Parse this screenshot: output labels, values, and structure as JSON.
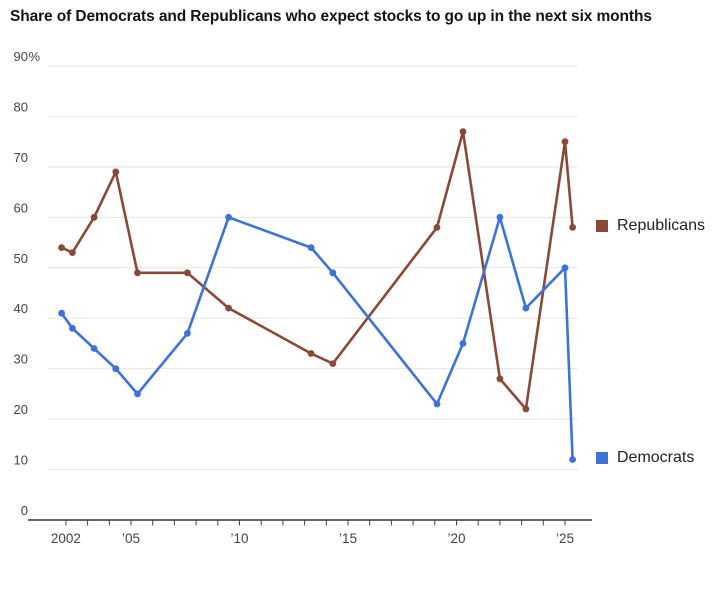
{
  "title": "Share of Democrats and Republicans who expect stocks to go up in the next six months",
  "legend": {
    "republicans": "Republicans",
    "democrats": "Democrats"
  },
  "colors": {
    "republicans": "#8a4936",
    "democrats": "#3c72da",
    "grid": "#e5e5e5",
    "axis": "#333333",
    "tick_label": "#444444",
    "title": "#141414"
  },
  "chart_data": {
    "type": "line",
    "x": [
      2001.8,
      2002.3,
      2003.3,
      2004.3,
      2005.3,
      2007.6,
      2009.5,
      2013.3,
      2014.3,
      2019.1,
      2020.3,
      2022.0,
      2023.2,
      2025.0,
      2025.35
    ],
    "series": [
      {
        "name": "Republicans",
        "color_key": "republicans",
        "values": [
          54,
          53,
          60,
          69,
          49,
          49,
          42,
          33,
          31,
          58,
          77,
          28,
          22,
          75,
          58
        ]
      },
      {
        "name": "Democrats",
        "color_key": "democrats",
        "values": [
          41,
          38,
          34,
          30,
          25,
          37,
          60,
          54,
          49,
          23,
          35,
          60,
          42,
          50,
          12
        ]
      }
    ],
    "ylim": [
      0,
      90
    ],
    "yticks": [
      0,
      10,
      20,
      30,
      40,
      50,
      60,
      70,
      80,
      90
    ],
    "ytick_top_suffix": "%",
    "xticks": [
      {
        "year": 2002,
        "label": "2002"
      },
      {
        "year": 2005,
        "label": "’05"
      },
      {
        "year": 2010,
        "label": "’10"
      },
      {
        "year": 2015,
        "label": "’15"
      },
      {
        "year": 2020,
        "label": "’20"
      },
      {
        "year": 2025,
        "label": "’25"
      }
    ],
    "minor_tick_years_start": 2002,
    "minor_tick_years_end": 2025,
    "grid": true,
    "legend_position": "right"
  }
}
